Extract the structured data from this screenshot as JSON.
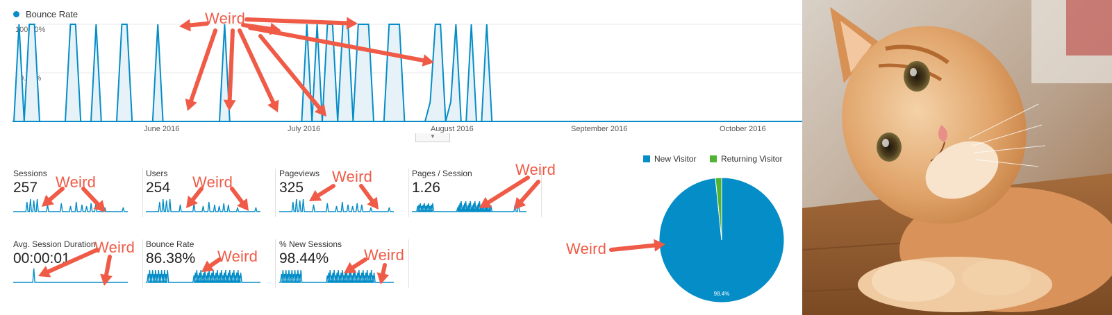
{
  "legend": {
    "series_label": "Bounce Rate"
  },
  "chart_data": {
    "type": "area",
    "ylabels": [
      "100.00%",
      "50.00%"
    ],
    "xlabels": [
      "June 2016",
      "July 2016",
      "August 2016",
      "September 2016",
      "October 2016"
    ],
    "series": [
      {
        "name": "Bounce Rate",
        "description_points": [
          [
            0,
            0
          ],
          [
            1,
            100
          ],
          [
            2,
            0
          ],
          [
            3,
            100
          ],
          [
            4,
            100
          ],
          [
            5,
            0
          ],
          [
            10,
            0
          ],
          [
            11,
            100
          ],
          [
            12,
            100
          ],
          [
            13,
            0
          ],
          [
            15,
            0
          ],
          [
            16,
            100
          ],
          [
            17,
            0
          ],
          [
            20,
            0
          ],
          [
            21,
            100
          ],
          [
            22,
            100
          ],
          [
            23,
            0
          ],
          [
            27,
            0
          ],
          [
            28,
            100
          ],
          [
            29,
            0
          ],
          [
            40,
            0
          ],
          [
            41,
            100
          ],
          [
            42,
            0
          ],
          [
            56,
            0
          ],
          [
            57,
            100
          ],
          [
            58,
            0
          ],
          [
            59,
            100
          ],
          [
            60,
            0
          ],
          [
            61,
            100
          ],
          [
            62,
            100
          ],
          [
            63,
            0
          ],
          [
            64,
            100
          ],
          [
            65,
            100
          ],
          [
            66,
            0
          ],
          [
            67,
            100
          ],
          [
            68,
            100
          ],
          [
            69,
            100
          ],
          [
            70,
            0
          ],
          [
            72,
            0
          ],
          [
            73,
            100
          ],
          [
            74,
            100
          ],
          [
            75,
            100
          ],
          [
            76,
            0
          ],
          [
            80,
            0
          ],
          [
            81,
            20
          ],
          [
            82,
            100
          ],
          [
            83,
            100
          ],
          [
            84,
            0
          ],
          [
            85,
            20
          ],
          [
            86,
            100
          ],
          [
            87,
            0
          ],
          [
            88,
            0
          ],
          [
            89,
            100
          ],
          [
            90,
            0
          ],
          [
            91,
            0
          ],
          [
            92,
            100
          ],
          [
            93,
            0
          ],
          [
            100,
            0
          ],
          [
            150,
            0
          ]
        ]
      }
    ],
    "ylim": [
      0,
      100
    ]
  },
  "metrics": [
    {
      "label": "Sessions",
      "value": "257"
    },
    {
      "label": "Users",
      "value": "254"
    },
    {
      "label": "Pageviews",
      "value": "325"
    },
    {
      "label": "Pages / Session",
      "value": "1.26"
    },
    {
      "label": "Avg. Session Duration",
      "value": "00:00:01"
    },
    {
      "label": "Bounce Rate",
      "value": "86.38%"
    },
    {
      "label": "% New Sessions",
      "value": "98.44%"
    }
  ],
  "pie": {
    "legend": [
      {
        "name": "New Visitor",
        "color": "#058dc7"
      },
      {
        "name": "Returning Visitor",
        "color": "#50b432"
      }
    ],
    "new_pct": 98.4,
    "slice_label": "98.4%"
  },
  "annotations": {
    "weird": "Weird"
  },
  "colors": {
    "accent": "#058dc7",
    "annotation": "#ef5b47",
    "returning": "#50b432"
  }
}
